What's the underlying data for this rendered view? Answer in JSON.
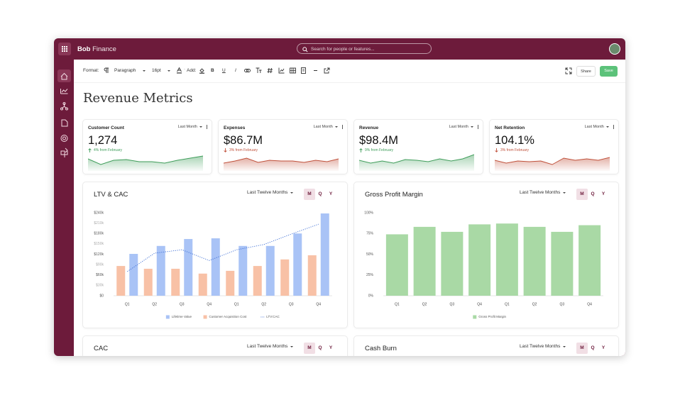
{
  "header": {
    "brand": "Bob",
    "brand_suffix": "Finance",
    "search_placeholder": "Search for people or features..."
  },
  "toolbar": {
    "format_label": "Format:",
    "paragraph": "Paragraph",
    "font_size": "16pt",
    "add_label": "Add:",
    "format_buttons": [
      "B",
      "U",
      "I"
    ],
    "share": "Share",
    "save": "Save"
  },
  "page_title": "Revenue Metrics",
  "kpis": [
    {
      "title": "Customer Count",
      "period": "Last Month",
      "value": "1,274",
      "change": "4% from February",
      "trend": "up",
      "color": "#3f9d5a",
      "sparkline": [
        16,
        8,
        14,
        15,
        12,
        12,
        10,
        14,
        17,
        20
      ]
    },
    {
      "title": "Expenses",
      "period": "Last Month",
      "value": "$86.7M",
      "change": "3% from February",
      "trend": "down",
      "color": "#c0513b",
      "sparkline": [
        10,
        13,
        17,
        11,
        14,
        13,
        13,
        11,
        14,
        12,
        16
      ]
    },
    {
      "title": "Revenue",
      "period": "Last Month",
      "value": "$98.4M",
      "change": "9% from February",
      "trend": "up",
      "color": "#3f9d5a",
      "sparkline": [
        14,
        10,
        13,
        10,
        15,
        14,
        12,
        16,
        13,
        16,
        22
      ]
    },
    {
      "title": "Net Retention",
      "period": "Last Month",
      "value": "104.1%",
      "change": "3% from February",
      "trend": "down",
      "color": "#c0513b",
      "sparkline": [
        14,
        10,
        13,
        12,
        13,
        8,
        17,
        14,
        16,
        14,
        18
      ]
    }
  ],
  "chart_data": [
    {
      "type": "bar",
      "title": "LTV & CAC",
      "period": "Last Twelve Months",
      "period_buttons": [
        "M",
        "Q",
        "Y"
      ],
      "categories": [
        "Q1",
        "Q2",
        "Q3",
        "Q4",
        "Q1",
        "Q2",
        "Q3",
        "Q4"
      ],
      "series": [
        {
          "name": "Lifetime Value",
          "color": "#a9c3f6",
          "values": [
            121000,
            144000,
            164000,
            166000,
            144000,
            144000,
            180000,
            238000
          ]
        },
        {
          "name": "Customer Acquisition Cost",
          "color": "#f8c1a6",
          "values": [
            86000,
            78000,
            78000,
            64000,
            72000,
            86000,
            105000,
            117000
          ]
        },
        {
          "name": "LTV:CAC",
          "type": "line",
          "color": "#3a6bd4",
          "values": [
            70000,
            123000,
            133000,
            102000,
            133000,
            148000,
            178000,
            207000
          ]
        }
      ],
      "ylim": [
        0,
        240000
      ],
      "yticks": [
        {
          "value": 0,
          "label": "$0"
        },
        {
          "value": 30000,
          "label": "$30k"
        },
        {
          "value": 60000,
          "label": "$60k"
        },
        {
          "value": 90000,
          "label": "$90k"
        },
        {
          "value": 120000,
          "label": "$120k"
        },
        {
          "value": 150000,
          "label": "$150k"
        },
        {
          "value": 180000,
          "label": "$180k"
        },
        {
          "value": 210000,
          "label": "$210k"
        },
        {
          "value": 240000,
          "label": "$240k"
        }
      ]
    },
    {
      "type": "bar",
      "title": "Gross Profit Margin",
      "period": "Last Twelve Months",
      "period_buttons": [
        "M",
        "Q",
        "Y"
      ],
      "categories": [
        "Q1",
        "Q2",
        "Q3",
        "Q4",
        "Q1",
        "Q2",
        "Q3",
        "Q4"
      ],
      "series": [
        {
          "name": "Gross Profit Margin",
          "color": "#a9d9a5",
          "values": [
            74,
            83,
            77,
            86,
            87,
            83,
            77,
            85
          ]
        }
      ],
      "ylim": [
        0,
        100
      ],
      "yticks": [
        {
          "value": 0,
          "label": "0%"
        },
        {
          "value": 25,
          "label": "25%"
        },
        {
          "value": 50,
          "label": "50%"
        },
        {
          "value": 75,
          "label": "75%"
        },
        {
          "value": 100,
          "label": "100%"
        }
      ]
    }
  ],
  "pending_charts": [
    {
      "title": "CAC",
      "period": "Last Twelve Months",
      "period_buttons": [
        "M",
        "Q",
        "Y"
      ]
    },
    {
      "title": "Cash Burn",
      "period": "Last Twelve Months",
      "period_buttons": [
        "M",
        "Q",
        "Y"
      ]
    }
  ]
}
